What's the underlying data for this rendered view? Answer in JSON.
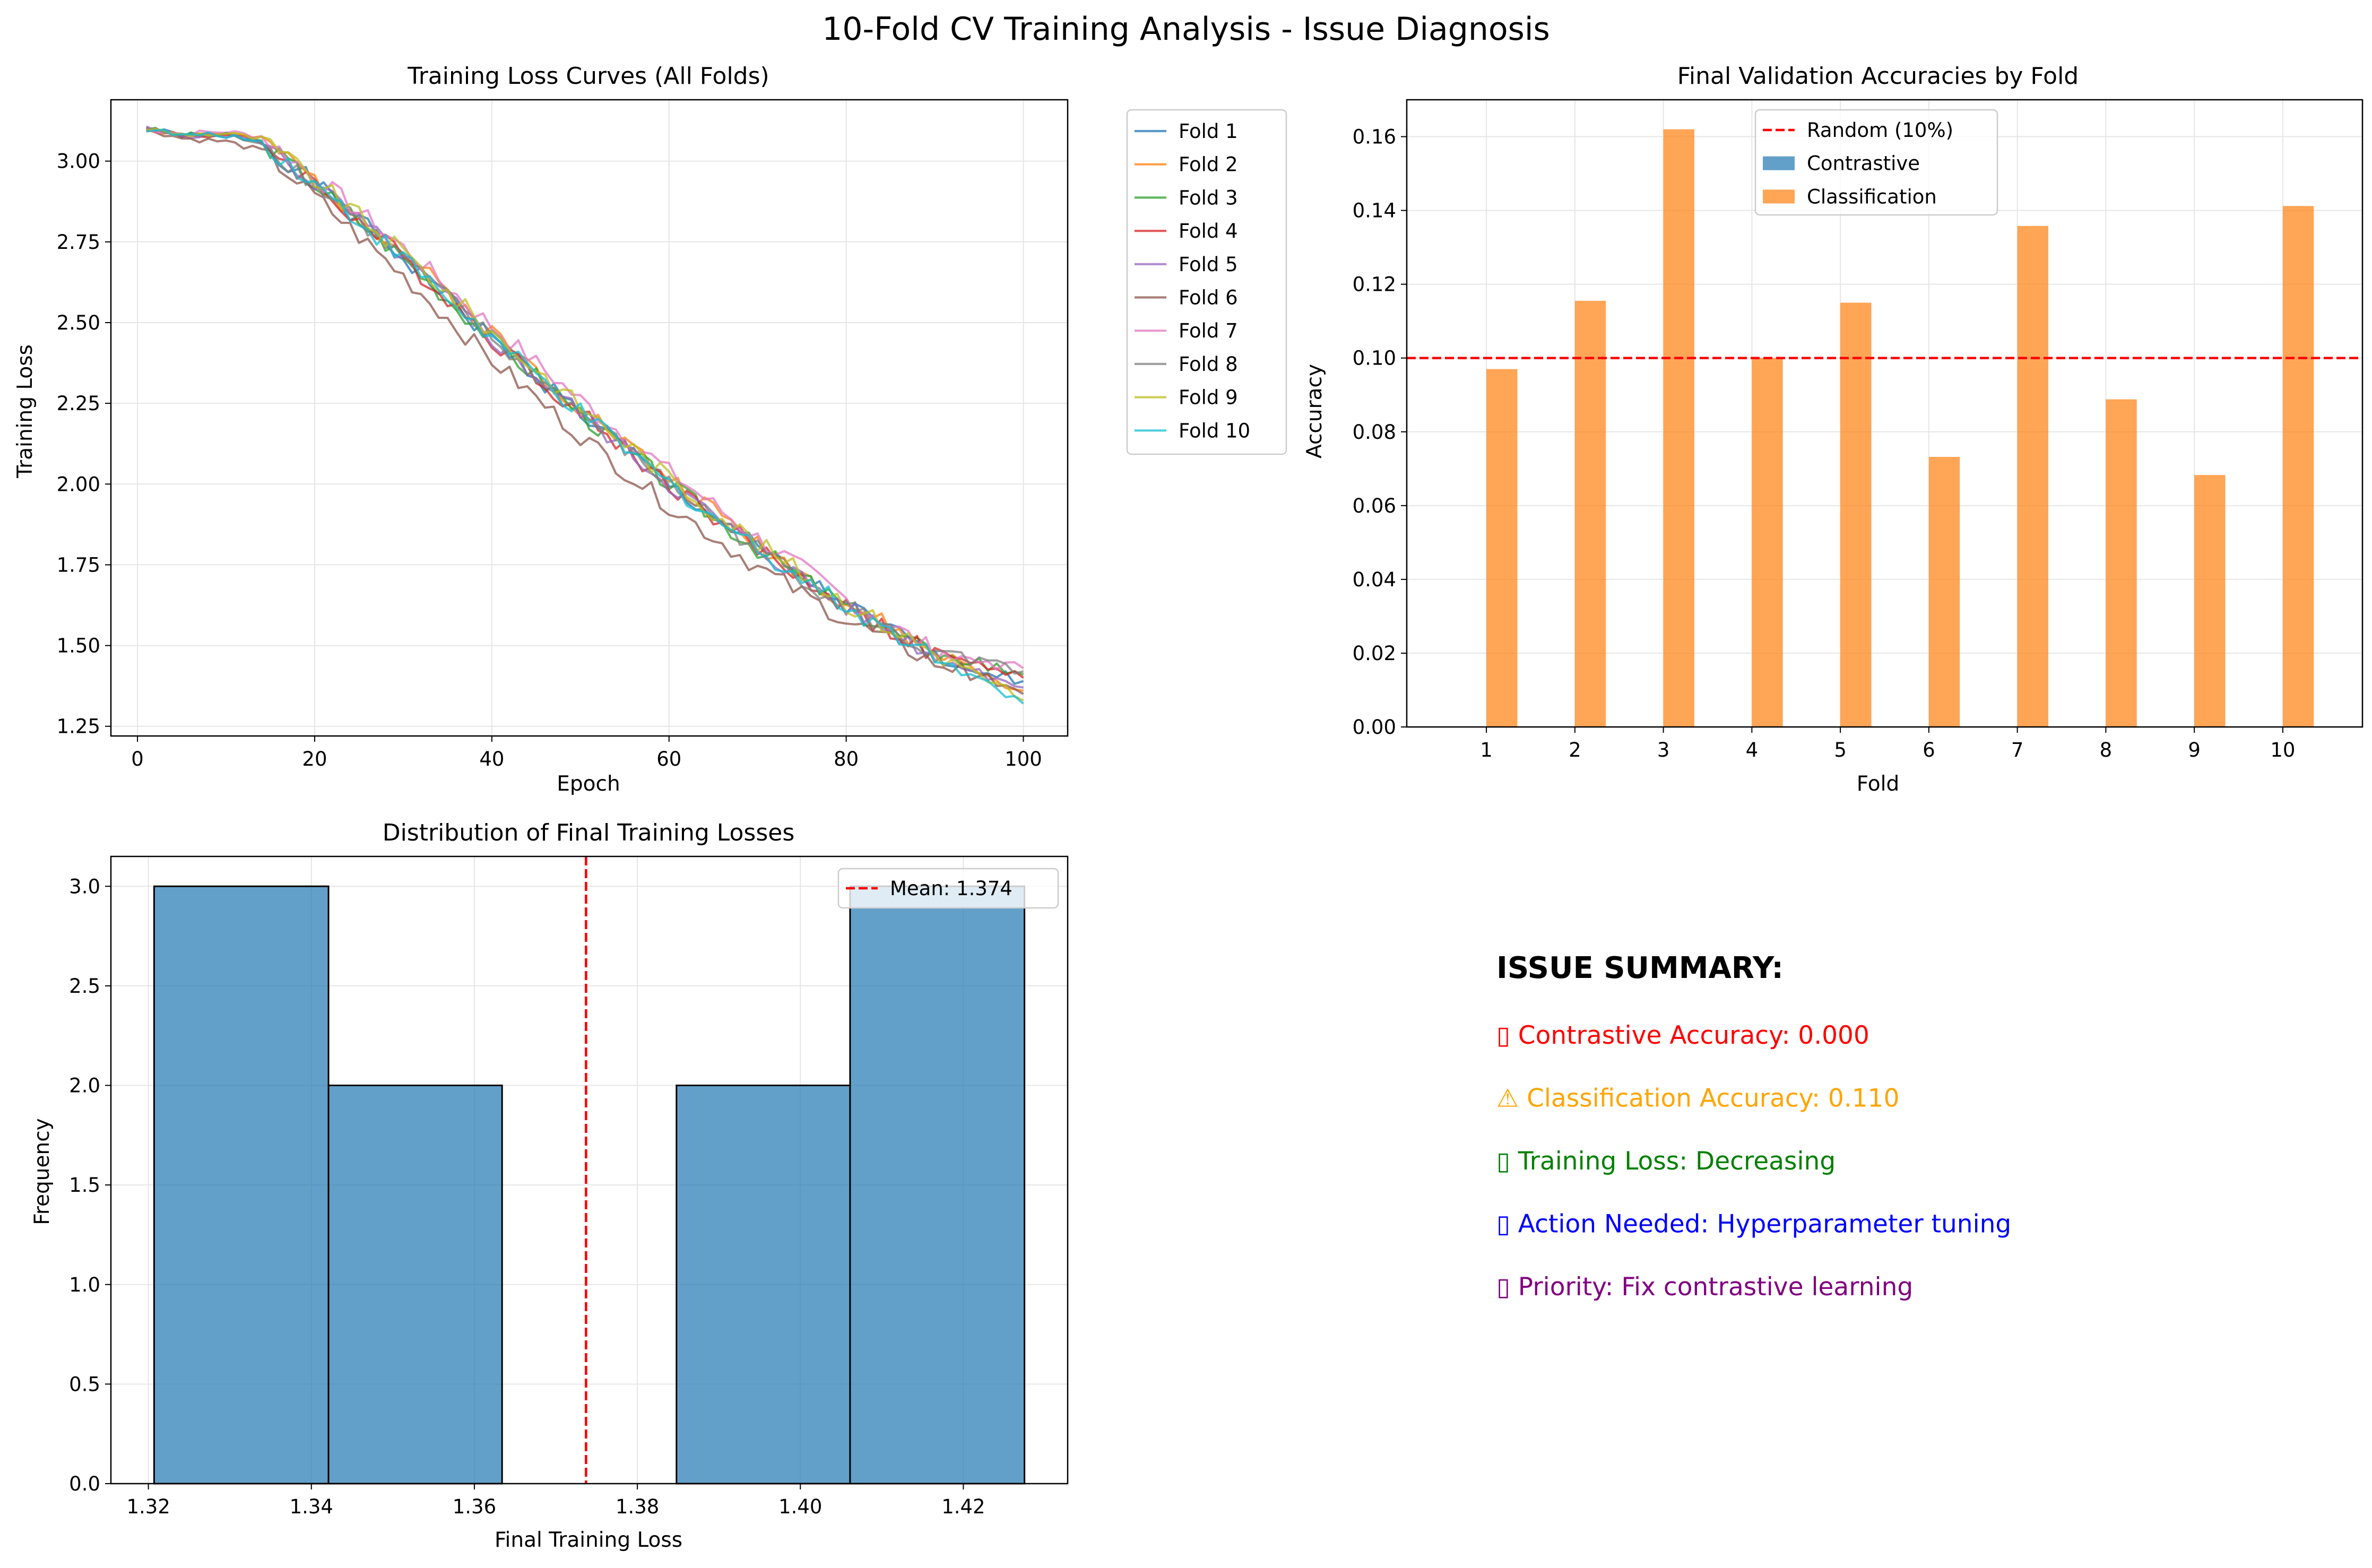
{
  "figure_title": "10-Fold CV Training Analysis - Issue Diagnosis",
  "chart_data": [
    {
      "type": "line",
      "title": "Training Loss Curves (All Folds)",
      "xlabel": "Epoch",
      "ylabel": "Training Loss",
      "xlim": [
        -3,
        105
      ],
      "ylim": [
        1.22,
        3.19
      ],
      "xticks": [
        0,
        20,
        40,
        60,
        80,
        100
      ],
      "yticks": [
        1.25,
        1.5,
        1.75,
        2.0,
        2.25,
        2.5,
        2.75,
        3.0
      ],
      "ytick_format": 2,
      "grid": true,
      "legend_position": "outside-right",
      "x_start": 1,
      "x_end": 100,
      "anchors_x": [
        1,
        5,
        10,
        14,
        20,
        30,
        40,
        50,
        60,
        70,
        80,
        90,
        100
      ],
      "anchors_y": [
        3.1,
        3.08,
        3.08,
        3.06,
        2.93,
        2.7,
        2.45,
        2.22,
        2.0,
        1.8,
        1.62,
        1.47,
        1.37
      ],
      "series": [
        {
          "name": "Fold 1",
          "color": "#1f77b4",
          "offset": 0.0,
          "end": 1.39
        },
        {
          "name": "Fold 2",
          "color": "#ff7f0e",
          "offset": 0.02,
          "end": 1.36
        },
        {
          "name": "Fold 3",
          "color": "#2ca02c",
          "offset": 0.0,
          "end": 1.41
        },
        {
          "name": "Fold 4",
          "color": "#d62728",
          "offset": 0.0,
          "end": 1.4
        },
        {
          "name": "Fold 5",
          "color": "#9467bd",
          "offset": 0.0,
          "end": 1.37
        },
        {
          "name": "Fold 6",
          "color": "#8c564b",
          "offset": -0.07,
          "end": 1.35
        },
        {
          "name": "Fold 7",
          "color": "#e377c2",
          "offset": 0.04,
          "end": 1.43
        },
        {
          "name": "Fold 8",
          "color": "#7f7f7f",
          "offset": 0.0,
          "end": 1.42
        },
        {
          "name": "Fold 9",
          "color": "#bcbd22",
          "offset": 0.02,
          "end": 1.33
        },
        {
          "name": "Fold 10",
          "color": "#17becf",
          "offset": 0.0,
          "end": 1.32
        }
      ]
    },
    {
      "type": "bar",
      "title": "Final Validation Accuracies by Fold",
      "xlabel": "Fold",
      "ylabel": "Accuracy",
      "categories": [
        "1",
        "2",
        "3",
        "4",
        "5",
        "6",
        "7",
        "8",
        "9",
        "10"
      ],
      "xlim": [
        0.1,
        10.9
      ],
      "ylim": [
        0,
        0.17
      ],
      "yticks": [
        0.0,
        0.02,
        0.04,
        0.06,
        0.08,
        0.1,
        0.12,
        0.14,
        0.16
      ],
      "ytick_format": 2,
      "grid": true,
      "legend_position": "upper-center",
      "series": [
        {
          "name": "Contrastive",
          "color": "#1f77b4",
          "values": [
            0,
            0,
            0,
            0,
            0,
            0,
            0,
            0,
            0,
            0
          ]
        },
        {
          "name": "Classification",
          "color": "#ff7f0e",
          "values": [
            0.097,
            0.1155,
            0.162,
            0.1,
            0.115,
            0.0732,
            0.1358,
            0.0888,
            0.0683,
            0.1412
          ]
        }
      ],
      "reference_line": {
        "label": "Random (10%)",
        "value": 0.1,
        "color": "#ff0000"
      }
    },
    {
      "type": "bar",
      "title": "Distribution of Final Training Losses",
      "xlabel": "Final Training Loss",
      "ylabel": "Frequency",
      "xlim": [
        1.3154,
        1.4328
      ],
      "ylim": [
        0,
        3.15
      ],
      "xticks": [
        1.32,
        1.34,
        1.36,
        1.38,
        1.4,
        1.42
      ],
      "xtick_format": 2,
      "yticks": [
        0.0,
        0.5,
        1.0,
        1.5,
        2.0,
        2.5,
        3.0
      ],
      "ytick_format": 1,
      "grid": true,
      "legend_position": "upper-right",
      "bar_color": "#1f77b4",
      "bins": [
        {
          "from": 1.3207,
          "to": 1.3421,
          "count": 3
        },
        {
          "from": 1.3421,
          "to": 1.3634,
          "count": 2
        },
        {
          "from": 1.3634,
          "to": 1.3848,
          "count": 0
        },
        {
          "from": 1.3848,
          "to": 1.4061,
          "count": 2
        },
        {
          "from": 1.4061,
          "to": 1.4275,
          "count": 3
        }
      ],
      "mean_line": {
        "label": "Mean: 1.374",
        "value": 1.3737,
        "color": "#ff0000"
      }
    }
  ],
  "summary": {
    "title": "ISSUE SUMMARY:",
    "lines": [
      {
        "text": "▯ Contrastive Accuracy: 0.000",
        "color": "#ff0000"
      },
      {
        "text": "⚠ Classification Accuracy: 0.110",
        "color": "#ffa500"
      },
      {
        "text": "▯ Training Loss: Decreasing",
        "color": "#008000"
      },
      {
        "text": "▯ Action Needed: Hyperparameter tuning",
        "color": "#0000ff"
      },
      {
        "text": "▯ Priority: Fix contrastive learning",
        "color": "#800080"
      }
    ]
  }
}
